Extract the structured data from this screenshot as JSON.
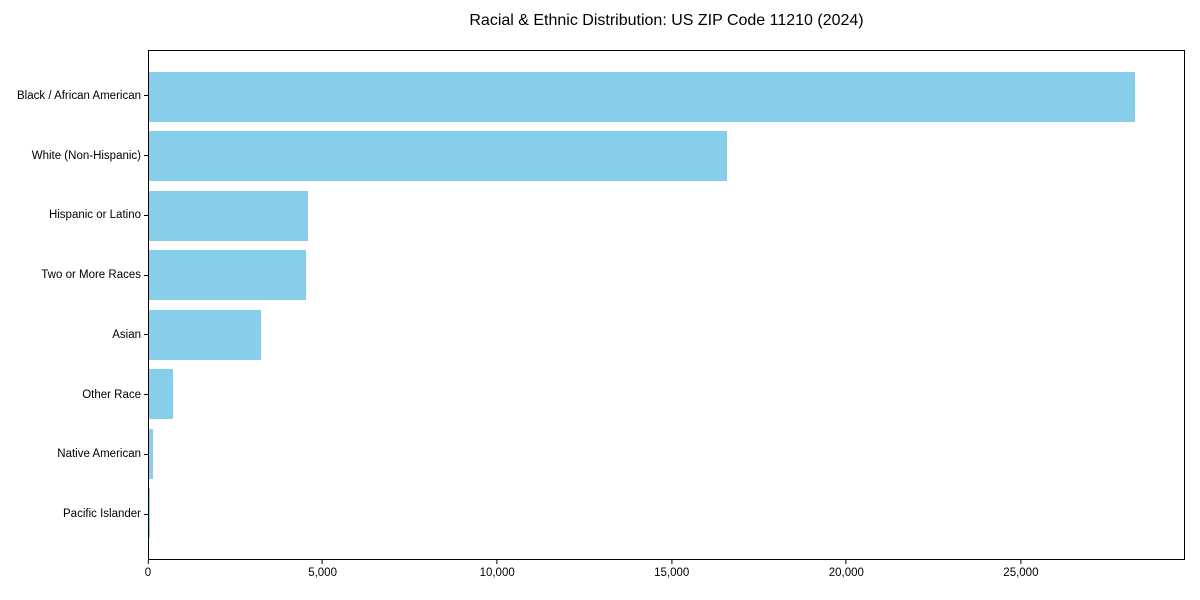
{
  "chart_data": {
    "type": "bar",
    "orientation": "horizontal",
    "title": "Racial & Ethnic Distribution: US ZIP Code 11210 (2024)",
    "categories": [
      "Black / African American",
      "White (Non-Hispanic)",
      "Hispanic or Latino",
      "Two or More Races",
      "Asian",
      "Other Race",
      "Native American",
      "Pacific Islander"
    ],
    "values": [
      28300,
      16600,
      4550,
      4500,
      3200,
      700,
      110,
      20
    ],
    "xlabel": "",
    "ylabel": "",
    "xlim": [
      0,
      29700
    ],
    "x_ticks": [
      0,
      5000,
      10000,
      15000,
      20000,
      25000
    ],
    "x_tick_labels": [
      "0",
      "5,000",
      "10,000",
      "15,000",
      "20,000",
      "25,000"
    ],
    "bar_color": "#87CEEB",
    "background_color": "#ffffff",
    "axis_color": "#000000",
    "grid": false,
    "legend": null
  }
}
